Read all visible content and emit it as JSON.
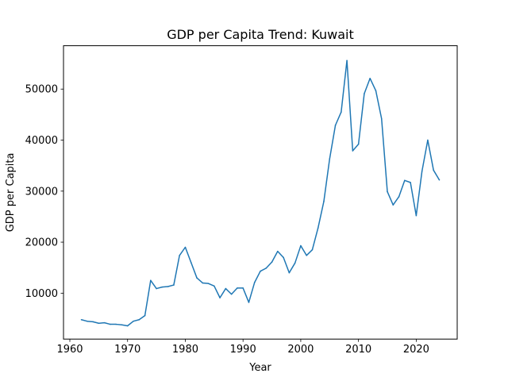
{
  "chart_data": {
    "type": "line",
    "title": "GDP per Capita Trend: Kuwait",
    "xlabel": "Year",
    "ylabel": "GDP per Capita",
    "xlim": [
      1958.9,
      2027.1
    ],
    "ylim": [
      1000,
      58500
    ],
    "xticks": [
      1960,
      1970,
      1980,
      1990,
      2000,
      2010,
      2020
    ],
    "yticks": [
      10000,
      20000,
      30000,
      40000,
      50000
    ],
    "grid": false,
    "line_color": "#1f77b4",
    "series": [
      {
        "x": [
          1962,
          1963,
          1964,
          1965,
          1966,
          1967,
          1968,
          1969,
          1970,
          1971,
          1972,
          1973,
          1974,
          1975,
          1976,
          1977,
          1978,
          1979,
          1980,
          1981,
          1982,
          1983,
          1984,
          1985,
          1986,
          1987,
          1988,
          1989,
          1990,
          1991,
          1992,
          1993,
          1994,
          1995,
          1996,
          1997,
          1998,
          1999,
          2000,
          2001,
          2002,
          2003,
          2004,
          2005,
          2006,
          2007,
          2008,
          2009,
          2010,
          2011,
          2012,
          2013,
          2014,
          2015,
          2016,
          2017,
          2018,
          2019,
          2020,
          2021,
          2022,
          2023,
          2024
        ],
        "y": [
          4800,
          4500,
          4400,
          4100,
          4200,
          3900,
          3900,
          3800,
          3600,
          4500,
          4800,
          5600,
          12500,
          10900,
          11200,
          11300,
          11600,
          17400,
          19000,
          16000,
          13000,
          12000,
          11900,
          11400,
          9100,
          10900,
          9800,
          11000,
          11000,
          8200,
          12100,
          14300,
          14900,
          16100,
          18200,
          17000,
          14000,
          15900,
          19300,
          17400,
          18500,
          22800,
          28000,
          36300,
          42900,
          45500,
          55600,
          37900,
          39200,
          49100,
          52100,
          49700,
          44200,
          29900,
          27300,
          28900,
          32100,
          31700,
          25200,
          33900,
          40000,
          34100,
          32200
        ]
      }
    ]
  }
}
